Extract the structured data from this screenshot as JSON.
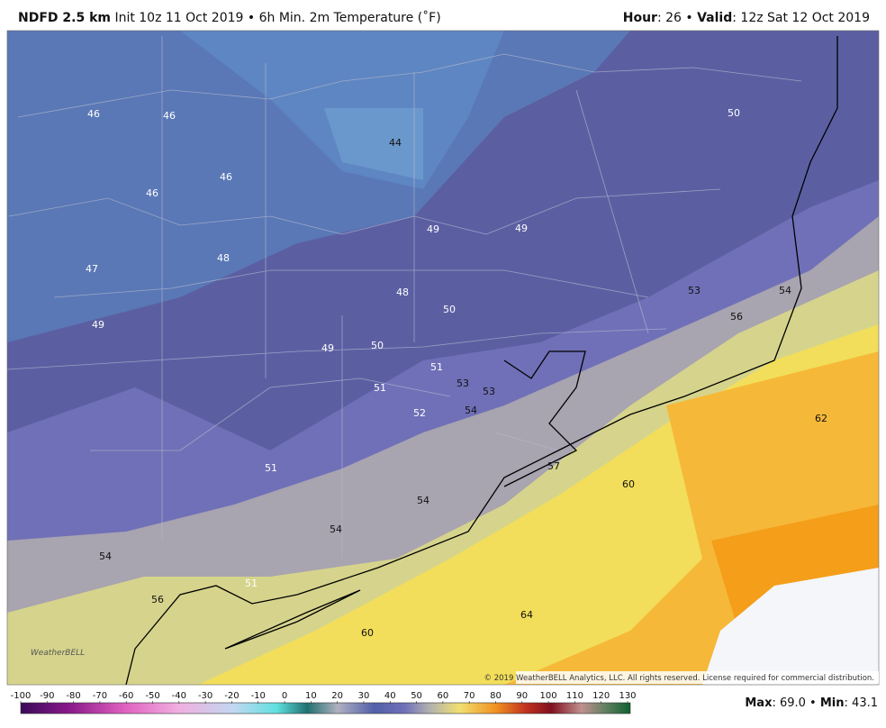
{
  "header": {
    "model": "NDFD 2.5 km",
    "description": "Init 10z 11 Oct 2019 • 6h Min. 2m Temperature (˚F)",
    "hour_label": "Hour",
    "hour_value": ": 26 •",
    "valid_label": "Valid",
    "valid_value": ": 12z Sat 12 Oct 2019"
  },
  "map": {
    "labels": [
      46,
      46,
      44,
      50,
      46,
      46,
      49,
      49,
      47,
      48,
      48,
      53,
      54,
      50,
      56,
      49,
      49,
      50,
      51,
      53,
      53,
      51,
      52,
      54,
      62,
      57,
      60,
      51,
      54,
      54,
      54,
      51,
      56,
      64,
      60
    ],
    "copyright": "© 2019 WeatherBELL Analytics, LLC. All rights reserved. License required for commercial distribution.",
    "logo": "WeatherBELL"
  },
  "colorbar": {
    "ticks": [
      -100,
      -90,
      -80,
      -70,
      -60,
      -50,
      -40,
      -30,
      -20,
      -10,
      0,
      10,
      20,
      30,
      40,
      50,
      60,
      70,
      80,
      90,
      100,
      110,
      120,
      130
    ]
  },
  "footer": {
    "max_label": "Max",
    "max_value": ": 69.0 •",
    "min_label": "Min",
    "min_value": ": 43.1"
  }
}
